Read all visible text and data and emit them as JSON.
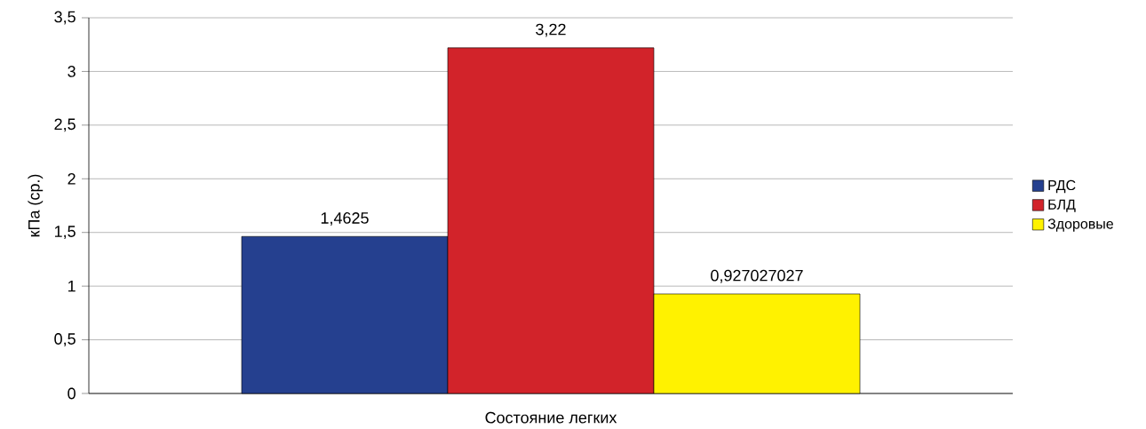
{
  "chart_data": {
    "type": "bar",
    "xlabel": "Состояние легких",
    "ylabel": "кПа (ср.)",
    "categories": [
      null
    ],
    "series": [
      {
        "name": "РДС",
        "color": "#25408f",
        "values": [
          1.4625
        ],
        "value_labels": [
          "1,4625"
        ]
      },
      {
        "name": "БЛД",
        "color": "#d2232a",
        "values": [
          3.22
        ],
        "value_labels": [
          "3,22"
        ]
      },
      {
        "name": "Здоровые",
        "color": "#fff200",
        "values": [
          0.927027027
        ],
        "value_labels": [
          "0,927027027"
        ]
      }
    ],
    "ylim": [
      0,
      3.5
    ],
    "yticks": [
      0,
      {
        "value": 0.5,
        "label": "0,5"
      },
      1,
      {
        "value": 1.5,
        "label": "1,5"
      },
      2,
      {
        "value": 2.5,
        "label": "2,5"
      },
      3,
      {
        "value": 3.5,
        "label": "3,5"
      }
    ],
    "grid": "y",
    "legend": "right"
  }
}
